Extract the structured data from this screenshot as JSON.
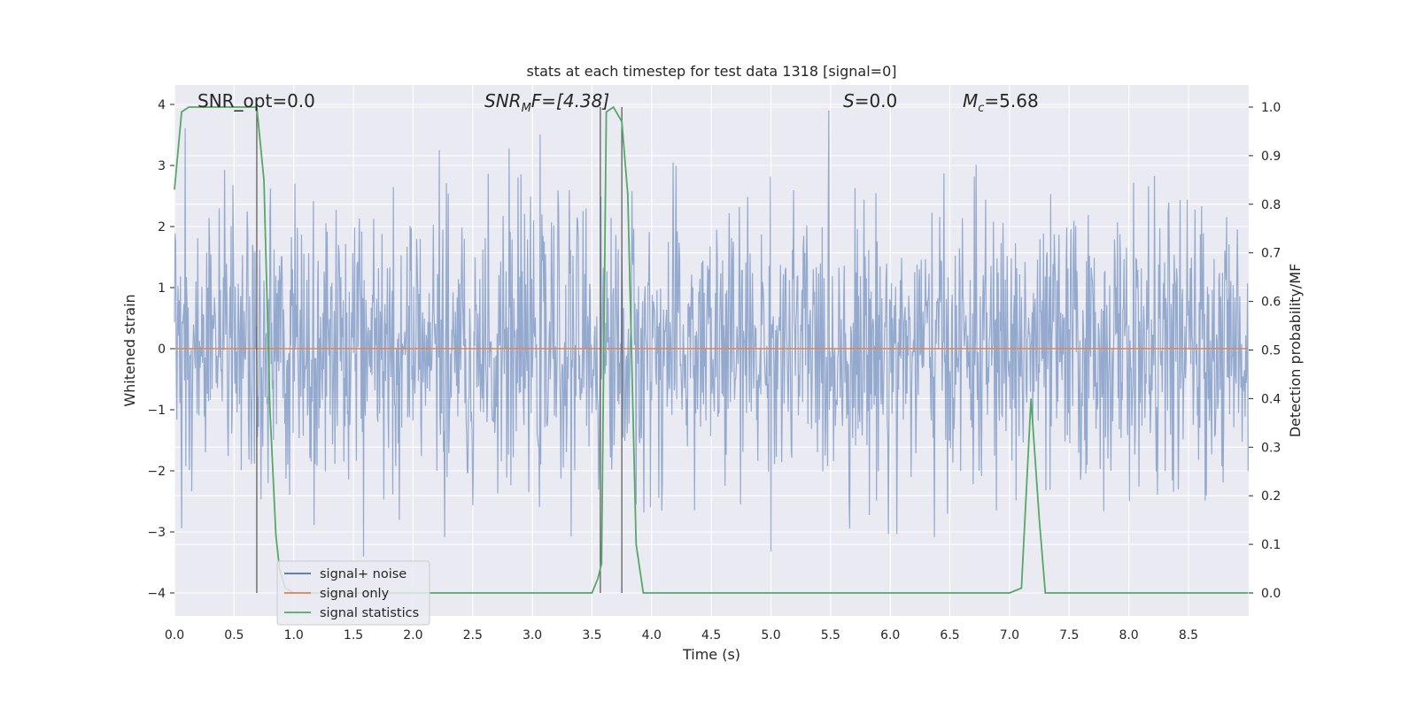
{
  "chart_data": {
    "type": "line",
    "title": "stats at each timestep for test data 1318 [signal=0]",
    "xlabel": "Time (s)",
    "ylabel": "Whitened strain",
    "ylabel_right": "Detection probability/MF",
    "xlim": [
      0.0,
      9.0
    ],
    "ylim": [
      -4.4,
      4.35
    ],
    "ylim_right": [
      -0.05,
      1.045
    ],
    "x_ticks": [
      "0.0",
      "0.5",
      "1.0",
      "1.5",
      "2.0",
      "2.5",
      "3.0",
      "3.5",
      "4.0",
      "4.5",
      "5.0",
      "5.5",
      "6.0",
      "6.5",
      "7.0",
      "7.5",
      "8.0",
      "8.5"
    ],
    "y_ticks": [
      "4",
      "3",
      "2",
      "1",
      "0",
      "−1",
      "−2",
      "−3",
      "−4"
    ],
    "y_right_ticks": [
      "1.0",
      "0.9",
      "0.8",
      "0.7",
      "0.6",
      "0.5",
      "0.4",
      "0.3",
      "0.2",
      "0.1",
      "0.0"
    ],
    "grid": true,
    "legend_position": "lower-left",
    "annotations": {
      "snr_opt": "SNR_opt=0.0",
      "snr_mf_main": "SNR",
      "snr_mf_sub": "M",
      "snr_mf_rest": "F=[4.38]",
      "s_main": "S",
      "s_rest": "=0.0",
      "mc_main": "M",
      "mc_sub": "c",
      "mc_rest": "=5.68"
    },
    "vertical_markers_x": [
      0.69,
      3.57,
      3.75
    ],
    "series": [
      {
        "name": "signal+ noise",
        "color": "#4c72b0",
        "axis": "left",
        "noise_amplitude": 1.1,
        "y_range": [
          -4.0,
          3.9
        ]
      },
      {
        "name": "signal only",
        "color": "#dd8452",
        "axis": "left",
        "x": [
          0.0,
          9.0
        ],
        "y": [
          0.0,
          0.0
        ]
      },
      {
        "name": "signal statistics",
        "color": "#55a868",
        "axis": "right",
        "x": [
          0.0,
          0.06,
          0.12,
          0.25,
          0.5,
          0.69,
          0.75,
          0.8,
          0.85,
          0.88,
          0.93,
          1.0,
          3.5,
          3.55,
          3.58,
          3.62,
          3.68,
          3.75,
          3.8,
          3.87,
          3.93,
          4.0,
          7.0,
          7.1,
          7.18,
          7.25,
          7.3,
          7.35,
          9.0
        ],
        "y": [
          0.83,
          0.99,
          1.0,
          1.0,
          1.0,
          1.0,
          0.85,
          0.38,
          0.12,
          0.05,
          0.01,
          0.0,
          0.0,
          0.03,
          0.06,
          0.99,
          1.0,
          0.97,
          0.82,
          0.1,
          0.0,
          0.0,
          0.0,
          0.01,
          0.4,
          0.15,
          0.0,
          0.0,
          0.0
        ]
      }
    ]
  }
}
